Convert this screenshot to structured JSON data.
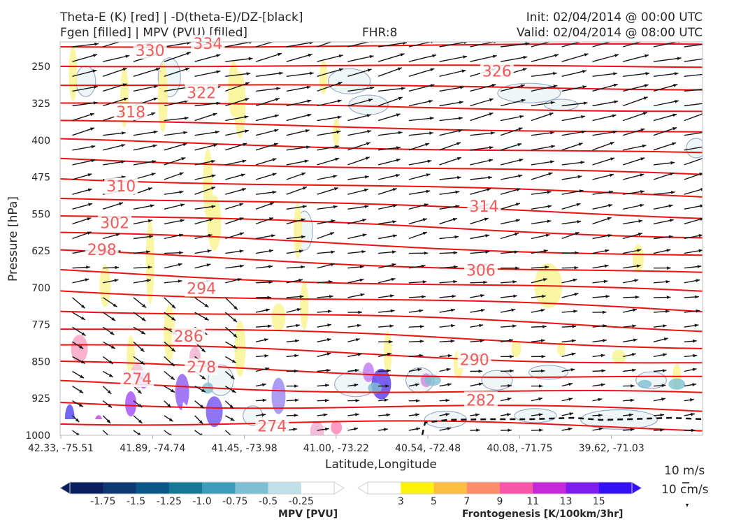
{
  "header": {
    "line1_left": "Theta-E (K) [red] | -D(theta-E)/DZ-[black]",
    "line2_left": "Fgen [filled] | MPV (PVU) [filled]",
    "fhr": "FHR:8",
    "init": "Init: 02/04/2014 @ 00:00 UTC",
    "valid": "Valid: 02/04/2014 @ 08:00 UTC"
  },
  "chart_data": {
    "type": "cross-section",
    "xlabel": "Latitude,Longitude",
    "ylabel": "Pressure [hPa]",
    "x_ticks": [
      "42.33, -75.51",
      "41.89, -74.74",
      "41.45, -73.98",
      "41.00, -73.22",
      "40.54, -72.48",
      "40.08, -71.75",
      "39.62, -71.03"
    ],
    "y_ticks": [
      250,
      325,
      400,
      475,
      550,
      625,
      700,
      775,
      850,
      925,
      1000
    ],
    "ylim": [
      1000,
      200
    ],
    "theta_e_labels": [
      {
        "value": "334",
        "x": 0.23,
        "p": 203
      },
      {
        "value": "330",
        "x": 0.14,
        "p": 217
      },
      {
        "value": "326",
        "x": 0.68,
        "p": 259
      },
      {
        "value": "322",
        "x": 0.22,
        "p": 303
      },
      {
        "value": "318",
        "x": 0.11,
        "p": 342
      },
      {
        "value": "314",
        "x": 0.66,
        "p": 534
      },
      {
        "value": "310",
        "x": 0.095,
        "p": 493
      },
      {
        "value": "306",
        "x": 0.655,
        "p": 664
      },
      {
        "value": "302",
        "x": 0.085,
        "p": 567
      },
      {
        "value": "298",
        "x": 0.065,
        "p": 622
      },
      {
        "value": "294",
        "x": 0.22,
        "p": 701
      },
      {
        "value": "290",
        "x": 0.645,
        "p": 846
      },
      {
        "value": "286",
        "x": 0.2,
        "p": 798
      },
      {
        "value": "282",
        "x": 0.655,
        "p": 928
      },
      {
        "value": "278",
        "x": 0.22,
        "p": 861
      },
      {
        "value": "274",
        "x": 0.12,
        "p": 885
      },
      {
        "value": "274",
        "x": 0.33,
        "p": 981
      }
    ],
    "mpv_colorbar": {
      "label": "MPV [PVU]",
      "ticks": [
        "-1.75",
        "-1.5",
        "-1.25",
        "-1.0",
        "-0.75",
        "-0.5",
        "-0.25"
      ],
      "colors": [
        "#0b1f5e",
        "#0d3a72",
        "#0d5688",
        "#167896",
        "#3e9cba",
        "#7fbfd3",
        "#bfe0e8",
        "#ffffff"
      ]
    },
    "fgen_colorbar": {
      "label": "Frontogenesis [K/100km/3hr]",
      "ticks": [
        "3",
        "5",
        "7",
        "9",
        "11",
        "13",
        "15"
      ],
      "colors": [
        "#ffffff",
        "#fff20a",
        "#fcbe41",
        "#fb8d6d",
        "#f857a9",
        "#c52ad9",
        "#7f1cf0",
        "#3410f5"
      ]
    },
    "reference_vectors": {
      "horizontal": "10 m/s",
      "vertical": "10 cm/s"
    }
  }
}
